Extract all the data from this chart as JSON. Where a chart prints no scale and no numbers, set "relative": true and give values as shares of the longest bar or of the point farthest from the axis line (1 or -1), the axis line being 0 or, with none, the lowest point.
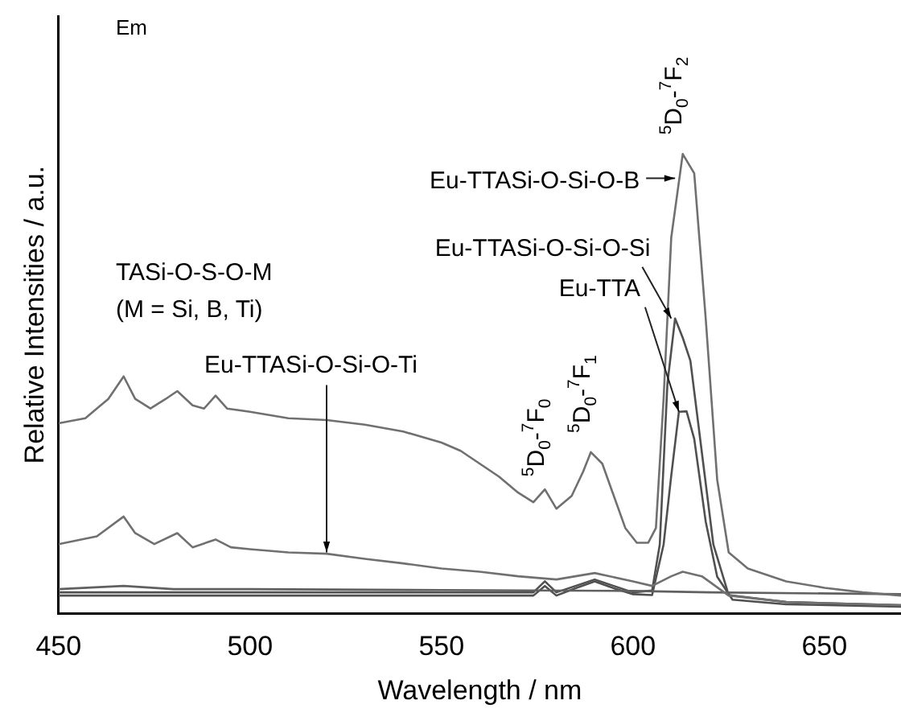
{
  "chart_data": {
    "type": "line",
    "xlabel": "Wavelength / nm",
    "ylabel": "Relative Intensities / a.u.",
    "relative": true,
    "xlim": [
      450,
      670
    ],
    "xticks": [
      450,
      500,
      550,
      600,
      650
    ],
    "annotations": [
      "Em",
      "TASi-O-S-O-M\n(M = Si, B, Ti)",
      {
        "text": "Eu-TTASi-O-Si-O-Ti",
        "x": 520,
        "y": 0.133
      },
      {
        "text": "Eu-TTASi-O-Si-O-B",
        "x": 611,
        "y": 0.947
      },
      {
        "text": "Eu-TTASi-O-Si-O-Si",
        "x": 610,
        "y": 0.642
      },
      {
        "text": "Eu-TTA",
        "x": 612,
        "y": 0.439
      },
      {
        "text": "$^{5}$D$_{0}$-$^{7}$F$_{0}$",
        "x": 577,
        "y": 0.27
      },
      {
        "text": "$^{5}$D$_{0}$-$^{7}$F$_{1}$",
        "x": 589,
        "y": 0.351
      },
      {
        "text": "$^{5}$D$_{0}$-$^{7}$F$_{2}$",
        "x": 613,
        "y": 1
      }
    ],
    "series": [
      {
        "color": "#707070",
        "x": [
          450,
          457,
          463,
          467,
          470,
          474,
          478,
          481,
          485,
          488,
          491,
          494,
          500,
          510,
          520,
          530,
          540,
          550,
          555,
          560,
          565,
          570,
          574,
          577,
          578,
          580,
          584,
          587,
          589,
          592,
          595,
          598,
          601,
          604,
          606,
          608,
          610,
          613,
          616,
          619,
          622,
          625,
          630,
          640,
          650,
          660,
          670
        ],
        "values": [
          0.414,
          0.425,
          0.467,
          0.516,
          0.467,
          0.446,
          0.467,
          0.484,
          0.453,
          0.446,
          0.474,
          0.446,
          0.439,
          0.425,
          0.421,
          0.411,
          0.396,
          0.372,
          0.354,
          0.326,
          0.298,
          0.263,
          0.242,
          0.27,
          0.256,
          0.228,
          0.256,
          0.309,
          0.351,
          0.326,
          0.256,
          0.186,
          0.154,
          0.154,
          0.186,
          0.467,
          0.818,
          1,
          0.958,
          0.642,
          0.291,
          0.133,
          0.098,
          0.07,
          0.056,
          0.046,
          0.039
        ]
      },
      {
        "color": "#707070",
        "x": [
          450,
          460,
          467,
          470,
          475,
          481,
          485,
          491,
          495,
          500,
          510,
          520,
          530,
          540,
          550,
          560,
          570,
          580,
          590,
          600,
          605,
          610,
          613,
          618,
          625,
          640,
          670
        ],
        "values": [
          0.151,
          0.168,
          0.211,
          0.175,
          0.151,
          0.175,
          0.144,
          0.161,
          0.144,
          0.14,
          0.133,
          0.13,
          0.119,
          0.109,
          0.098,
          0.091,
          0.081,
          0.074,
          0.088,
          0.07,
          0.06,
          0.081,
          0.091,
          0.081,
          0.039,
          0.025,
          0.018
        ]
      },
      {
        "color": "#606060",
        "x": [
          450,
          467,
          480,
          500,
          550,
          600,
          620,
          670
        ],
        "values": [
          0.053,
          0.06,
          0.053,
          0.053,
          0.051,
          0.049,
          0.046,
          0.042
        ]
      },
      {
        "color": "#505050",
        "x": [
          450,
          500,
          574,
          577,
          580,
          585,
          590,
          595,
          600,
          605,
          607,
          609,
          611,
          613,
          615,
          618,
          621,
          625,
          640,
          670
        ],
        "values": [
          0.046,
          0.046,
          0.046,
          0.07,
          0.046,
          0.06,
          0.074,
          0.06,
          0.046,
          0.05,
          0.15,
          0.5,
          0.642,
          0.6,
          0.55,
          0.35,
          0.15,
          0.04,
          0.025,
          0.018
        ]
      },
      {
        "color": "#505050",
        "x": [
          450,
          500,
          574,
          577,
          580,
          585,
          590,
          595,
          600,
          605,
          608,
          610,
          612,
          614,
          616,
          619,
          622,
          626,
          640,
          670
        ],
        "values": [
          0.039,
          0.039,
          0.039,
          0.06,
          0.039,
          0.055,
          0.07,
          0.055,
          0.042,
          0.04,
          0.15,
          0.3,
          0.439,
          0.44,
          0.38,
          0.2,
          0.08,
          0.03,
          0.02,
          0.015
        ]
      }
    ]
  }
}
